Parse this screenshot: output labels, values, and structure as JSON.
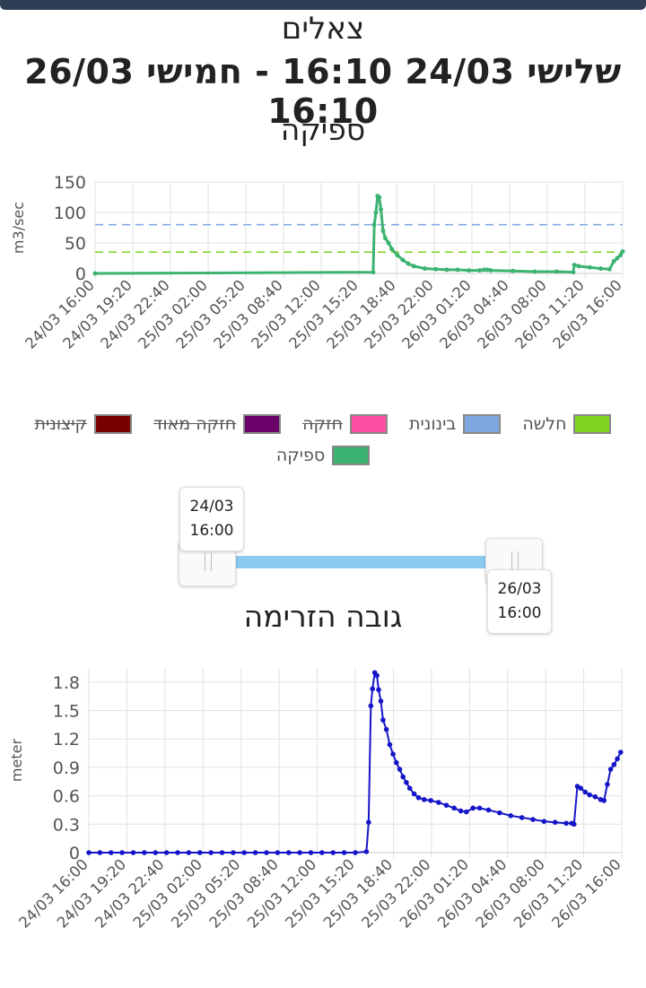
{
  "header": {
    "station": "צאלים",
    "range": "שלישי 24/03 16:10 - חמישי 26/03 16:10"
  },
  "chart_flow": {
    "title": "ספיקה",
    "chart_data": {
      "type": "line",
      "title": "ספיקה",
      "xlabel": "",
      "ylabel": "m3/sec",
      "ylim": [
        0,
        150
      ],
      "yticks": [
        0,
        50,
        100,
        150
      ],
      "xticks": [
        "24/03 16:00",
        "24/03 19:20",
        "24/03 22:40",
        "25/03 02:00",
        "25/03 05:20",
        "25/03 08:40",
        "25/03 12:00",
        "25/03 15:20",
        "25/03 18:40",
        "25/03 22:00",
        "26/03 01:20",
        "26/03 04:40",
        "26/03 08:00",
        "26/03 11:20",
        "26/03 16:00"
      ],
      "x_unit": "hours from 24/03 16:00",
      "xlim": [
        0,
        48
      ],
      "grid": true,
      "series": [
        {
          "name": "ספיקה",
          "color": "#3cb371",
          "x": [
            0,
            25.3,
            25.4,
            25.55,
            25.7,
            25.85,
            26.0,
            26.2,
            26.4,
            26.7,
            27.0,
            27.5,
            28.0,
            28.5,
            29.0,
            30.0,
            31.0,
            32.0,
            33.0,
            34.0,
            35.0,
            35.4,
            35.7,
            36.0,
            38.0,
            40.0,
            42.0,
            43.5,
            43.6,
            44.0,
            45.0,
            46.0,
            46.8,
            47.2,
            47.5,
            47.8,
            48.0
          ],
          "y": [
            0,
            2,
            80,
            100,
            127,
            125,
            105,
            70,
            58,
            50,
            40,
            30,
            22,
            16,
            12,
            8,
            7,
            6,
            6,
            5,
            5,
            6,
            6,
            5,
            4,
            3,
            3,
            2,
            14,
            12,
            10,
            8,
            7,
            20,
            25,
            30,
            36
          ]
        }
      ],
      "thresholds": [
        {
          "name": "חלשה",
          "value": 35,
          "color": "#7ed321",
          "dashed": true
        },
        {
          "name": "בינונית",
          "value": 80,
          "color": "#7ea6e0",
          "dashed": true
        }
      ]
    }
  },
  "legend": [
    {
      "label": "חלשה",
      "color": "#7ed321",
      "hidden": false
    },
    {
      "label": "בינונית",
      "color": "#7ea6e0",
      "hidden": false
    },
    {
      "label": "חזקה",
      "color": "#ff4fa3",
      "hidden": true
    },
    {
      "label": "חזקה מאוד",
      "color": "#6a006a",
      "hidden": true
    },
    {
      "label": "קיצונית",
      "color": "#7a0000",
      "hidden": true
    },
    {
      "label": "ספיקה",
      "color": "#3cb371",
      "hidden": false
    }
  ],
  "slider": {
    "start_date": "24/03",
    "start_time": "16:00",
    "end_date": "26/03",
    "end_time": "16:00"
  },
  "chart_level": {
    "title": "גובה הזרימה",
    "chart_data": {
      "type": "line",
      "title": "גובה הזרימה",
      "xlabel": "",
      "ylabel": "meter",
      "ylim": [
        0,
        1.95
      ],
      "yticks": [
        0,
        0.3,
        0.6,
        0.9,
        1.2,
        1.5,
        1.8
      ],
      "xticks": [
        "24/03 16:00",
        "24/03 19:20",
        "24/03 22:40",
        "25/03 02:00",
        "25/03 05:20",
        "25/03 08:40",
        "25/03 12:00",
        "25/03 15:20",
        "25/03 18:40",
        "25/03 22:00",
        "26/03 01:20",
        "26/03 04:40",
        "26/03 08:00",
        "26/03 11:20",
        "26/03 16:00"
      ],
      "x_unit": "hours from 24/03 16:00",
      "xlim": [
        0,
        48
      ],
      "grid": true,
      "series": [
        {
          "name": "",
          "color": "#1515c8",
          "x": [
            0,
            1,
            2,
            3,
            4,
            5,
            6,
            7,
            8,
            9,
            10,
            11,
            12,
            13,
            14,
            15,
            16,
            17,
            18,
            19,
            20,
            21,
            22,
            23,
            24,
            25,
            25.2,
            25.4,
            25.55,
            25.75,
            25.95,
            26.1,
            26.3,
            26.5,
            26.8,
            27.1,
            27.4,
            27.7,
            28.0,
            28.3,
            28.6,
            28.9,
            29.3,
            29.7,
            30.2,
            30.8,
            31.5,
            32.2,
            32.9,
            33.5,
            34.0,
            34.6,
            35.2,
            36.0,
            37.0,
            38.0,
            39.0,
            40.0,
            41.0,
            42.0,
            43.0,
            43.5,
            43.7,
            44.0,
            44.3,
            44.7,
            45.1,
            45.6,
            46.1,
            46.4,
            46.7,
            47.0,
            47.3,
            47.6,
            47.9
          ],
          "y": [
            0,
            0,
            0,
            0,
            0,
            0,
            0,
            0,
            0,
            0,
            0,
            0,
            0,
            0,
            0,
            0,
            0,
            0,
            0,
            0,
            0,
            0,
            0,
            0,
            0,
            0.01,
            0.32,
            1.55,
            1.73,
            1.9,
            1.87,
            1.72,
            1.6,
            1.4,
            1.3,
            1.14,
            1.04,
            0.95,
            0.88,
            0.8,
            0.74,
            0.68,
            0.62,
            0.58,
            0.56,
            0.55,
            0.53,
            0.5,
            0.47,
            0.44,
            0.43,
            0.47,
            0.47,
            0.45,
            0.42,
            0.39,
            0.37,
            0.35,
            0.33,
            0.32,
            0.31,
            0.31,
            0.3,
            0.7,
            0.68,
            0.64,
            0.61,
            0.59,
            0.56,
            0.55,
            0.72,
            0.88,
            0.93,
            0.99,
            1.06
          ]
        }
      ]
    }
  }
}
